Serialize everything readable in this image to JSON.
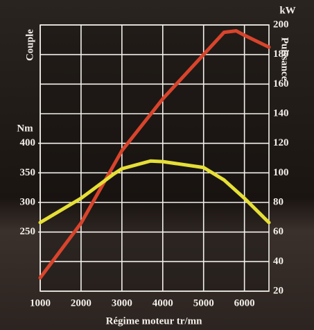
{
  "chart_data": {
    "type": "line",
    "title": "Régime moteur tr/mn",
    "y_label": "Couple",
    "y_unit": "Nm",
    "y2_label": "Puissance",
    "y2_unit": "kW",
    "xlim": [
      1000,
      6600
    ],
    "xticks": [
      1000,
      2000,
      3000,
      4000,
      5000,
      6000
    ],
    "ylim": [
      150,
      600
    ],
    "yticks": [
      250,
      300,
      350,
      400
    ],
    "y2lim": [
      20,
      200
    ],
    "y2ticks": [
      20,
      40,
      60,
      80,
      100,
      120,
      140,
      160,
      180,
      200
    ],
    "grid": true,
    "series": [
      {
        "name": "Puissance",
        "color": "#d8442c",
        "axis": "y2",
        "x": [
          1000,
          2000,
          3000,
          4000,
          5000,
          5500,
          5800,
          6000,
          6600
        ],
        "values": [
          29,
          66,
          115,
          150,
          180,
          195,
          196,
          193,
          185
        ]
      },
      {
        "name": "Couple",
        "color": "#e6df36",
        "x": [
          1000,
          2000,
          2800,
          3000,
          3700,
          4000,
          5000,
          5500,
          6000,
          6600
        ],
        "values": [
          266,
          307,
          348,
          357,
          370,
          369,
          359,
          338,
          307,
          266
        ]
      }
    ]
  }
}
